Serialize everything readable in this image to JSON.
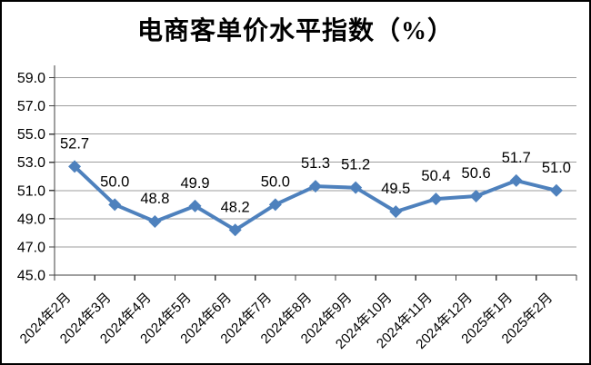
{
  "chart_data": {
    "type": "line",
    "title": "电商客单价水平指数（%）",
    "categories": [
      "2024年2月",
      "2024年3月",
      "2024年4月",
      "2024年5月",
      "2024年6月",
      "2024年7月",
      "2024年8月",
      "2024年9月",
      "2024年10月",
      "2024年11月",
      "2024年12月",
      "2025年1月",
      "2025年2月"
    ],
    "values": [
      52.7,
      50.0,
      48.8,
      49.9,
      48.2,
      50.0,
      51.3,
      51.2,
      49.5,
      50.4,
      50.6,
      51.7,
      51.0
    ],
    "data_labels": [
      "52.7",
      "50.0",
      "48.8",
      "49.9",
      "48.2",
      "50.0",
      "51.3",
      "51.2",
      "49.5",
      "50.4",
      "50.6",
      "51.7",
      "51.0"
    ],
    "xlabel": "",
    "ylabel": "",
    "ylim": [
      45.0,
      59.0
    ],
    "ytick_step": 2.0,
    "ytick_labels": [
      "45.0",
      "47.0",
      "49.0",
      "51.0",
      "53.0",
      "55.0",
      "57.0",
      "59.0"
    ],
    "grid": true,
    "legend_position": "none",
    "colors": {
      "line": "#4E81BD",
      "marker": "#4E81BD",
      "gridline": "#9d9d9d",
      "axis": "#3f3f3f",
      "label_text": "#000000",
      "background": "#ffffff",
      "frame_border": "#000000"
    }
  }
}
